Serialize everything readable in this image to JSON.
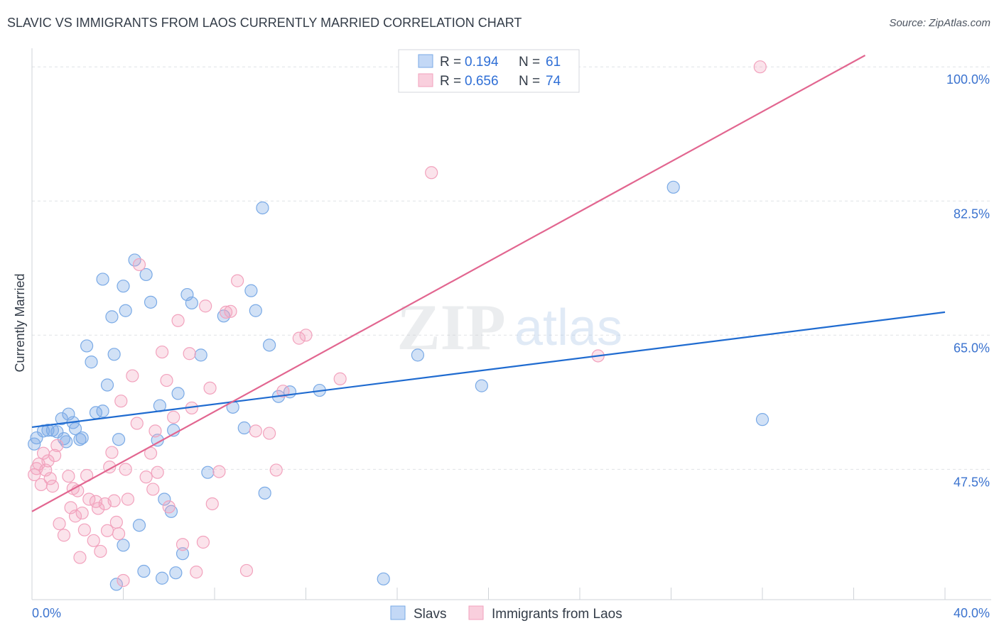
{
  "title": "SLAVIC VS IMMIGRANTS FROM LAOS CURRENTLY MARRIED CORRELATION CHART",
  "source": "Source: ZipAtlas.com",
  "watermark": {
    "zip": "ZIP",
    "atlas": "atlas"
  },
  "chart_data": {
    "type": "scatter",
    "title": "SLAVIC VS IMMIGRANTS FROM LAOS CURRENTLY MARRIED CORRELATION CHART",
    "xlabel": "",
    "ylabel": "Currently Married",
    "xlim": [
      0,
      40
    ],
    "ylim": [
      30.5,
      101.5
    ],
    "x_tick_labels": [
      "0.0%",
      "40.0%"
    ],
    "y_ticks": [
      47.5,
      65.0,
      82.5,
      100.0
    ],
    "y_tick_labels": [
      "47.5%",
      "65.0%",
      "82.5%",
      "100.0%"
    ],
    "legend": [
      {
        "r_label": "R =",
        "r_value": "0.194",
        "n_label": "N =",
        "n_value": "61"
      },
      {
        "r_label": "R =",
        "r_value": "0.656",
        "n_label": "N =",
        "n_value": "74"
      }
    ],
    "series": [
      {
        "name": "Slavs",
        "color": "#7aaae6",
        "line_color": "#1f6bd0",
        "trend": {
          "x": [
            0,
            40
          ],
          "y": [
            53.0,
            68.0
          ]
        },
        "points": [
          [
            0.2,
            51.6
          ],
          [
            0.5,
            52.5
          ],
          [
            0.7,
            52.6
          ],
          [
            0.9,
            52.6
          ],
          [
            1.1,
            52.4
          ],
          [
            1.3,
            54.1
          ],
          [
            1.4,
            51.5
          ],
          [
            1.6,
            54.7
          ],
          [
            1.8,
            53.6
          ],
          [
            1.9,
            52.8
          ],
          [
            2.1,
            51.4
          ],
          [
            2.2,
            51.6
          ],
          [
            2.4,
            63.6
          ],
          [
            2.6,
            61.5
          ],
          [
            2.8,
            54.9
          ],
          [
            3.1,
            55.1
          ],
          [
            3.1,
            72.3
          ],
          [
            3.3,
            58.5
          ],
          [
            3.5,
            67.4
          ],
          [
            3.6,
            62.5
          ],
          [
            3.8,
            51.4
          ],
          [
            4.0,
            71.4
          ],
          [
            4.1,
            68.2
          ],
          [
            4.5,
            74.8
          ],
          [
            4.7,
            40.2
          ],
          [
            4.9,
            34.2
          ],
          [
            5.0,
            72.9
          ],
          [
            5.2,
            69.3
          ],
          [
            5.5,
            51.3
          ],
          [
            5.6,
            55.8
          ],
          [
            5.7,
            33.3
          ],
          [
            5.8,
            43.6
          ],
          [
            6.1,
            42.0
          ],
          [
            6.2,
            52.6
          ],
          [
            6.4,
            57.4
          ],
          [
            6.6,
            36.5
          ],
          [
            6.8,
            70.3
          ],
          [
            7.0,
            69.2
          ],
          [
            7.4,
            62.4
          ],
          [
            7.7,
            47.1
          ],
          [
            8.4,
            67.5
          ],
          [
            8.8,
            55.6
          ],
          [
            9.3,
            52.9
          ],
          [
            9.6,
            70.8
          ],
          [
            9.8,
            68.2
          ],
          [
            10.2,
            44.4
          ],
          [
            10.1,
            81.6
          ],
          [
            10.4,
            63.7
          ],
          [
            10.8,
            57.0
          ],
          [
            11.3,
            57.6
          ],
          [
            12.6,
            57.8
          ],
          [
            15.4,
            33.2
          ],
          [
            16.9,
            62.4
          ],
          [
            19.7,
            58.4
          ],
          [
            28.1,
            84.3
          ],
          [
            32.0,
            54.0
          ],
          [
            0.1,
            50.8
          ],
          [
            1.5,
            51.1
          ],
          [
            3.7,
            32.5
          ],
          [
            6.3,
            34.0
          ],
          [
            4.0,
            37.6
          ]
        ]
      },
      {
        "name": "Immigrants from Laos",
        "color": "#f2a2bd",
        "line_color": "#e26690",
        "trend": {
          "x": [
            0,
            36.5
          ],
          "y": [
            42.0,
            101.5
          ]
        },
        "points": [
          [
            0.1,
            46.8
          ],
          [
            0.2,
            47.6
          ],
          [
            0.3,
            48.2
          ],
          [
            0.4,
            45.5
          ],
          [
            0.5,
            49.6
          ],
          [
            0.6,
            47.4
          ],
          [
            0.7,
            48.6
          ],
          [
            0.8,
            46.3
          ],
          [
            0.9,
            45.3
          ],
          [
            1.0,
            49.3
          ],
          [
            1.1,
            50.6
          ],
          [
            1.2,
            40.4
          ],
          [
            1.4,
            38.9
          ],
          [
            1.6,
            46.6
          ],
          [
            1.7,
            42.5
          ],
          [
            1.8,
            45.0
          ],
          [
            1.9,
            41.4
          ],
          [
            2.0,
            44.7
          ],
          [
            2.1,
            36.0
          ],
          [
            2.2,
            41.8
          ],
          [
            2.3,
            39.6
          ],
          [
            2.4,
            46.7
          ],
          [
            2.5,
            43.6
          ],
          [
            2.7,
            38.2
          ],
          [
            2.8,
            43.3
          ],
          [
            2.9,
            42.4
          ],
          [
            3.0,
            36.8
          ],
          [
            3.2,
            43.0
          ],
          [
            3.3,
            39.5
          ],
          [
            3.4,
            47.8
          ],
          [
            3.5,
            49.7
          ],
          [
            3.6,
            43.4
          ],
          [
            3.7,
            40.6
          ],
          [
            3.8,
            39.1
          ],
          [
            3.9,
            56.4
          ],
          [
            4.0,
            33.0
          ],
          [
            4.1,
            47.5
          ],
          [
            4.2,
            43.6
          ],
          [
            4.4,
            59.7
          ],
          [
            4.6,
            53.5
          ],
          [
            4.7,
            74.2
          ],
          [
            5.0,
            46.5
          ],
          [
            5.2,
            49.6
          ],
          [
            5.3,
            44.9
          ],
          [
            5.5,
            47.1
          ],
          [
            5.7,
            62.8
          ],
          [
            5.9,
            59.1
          ],
          [
            6.0,
            42.6
          ],
          [
            6.2,
            54.3
          ],
          [
            6.4,
            66.9
          ],
          [
            6.6,
            37.7
          ],
          [
            6.9,
            62.6
          ],
          [
            7.0,
            55.5
          ],
          [
            7.2,
            34.1
          ],
          [
            7.5,
            38.0
          ],
          [
            7.6,
            68.8
          ],
          [
            7.8,
            58.1
          ],
          [
            7.9,
            43.0
          ],
          [
            8.2,
            47.2
          ],
          [
            8.5,
            68.0
          ],
          [
            8.7,
            68.1
          ],
          [
            9.0,
            72.1
          ],
          [
            9.4,
            34.3
          ],
          [
            9.8,
            52.5
          ],
          [
            10.4,
            52.2
          ],
          [
            10.7,
            47.4
          ],
          [
            11.0,
            57.7
          ],
          [
            11.7,
            64.6
          ],
          [
            12.0,
            65.0
          ],
          [
            13.5,
            59.3
          ],
          [
            17.5,
            86.2
          ],
          [
            24.8,
            62.3
          ],
          [
            31.9,
            100.0
          ],
          [
            5.4,
            52.5
          ]
        ]
      }
    ]
  }
}
